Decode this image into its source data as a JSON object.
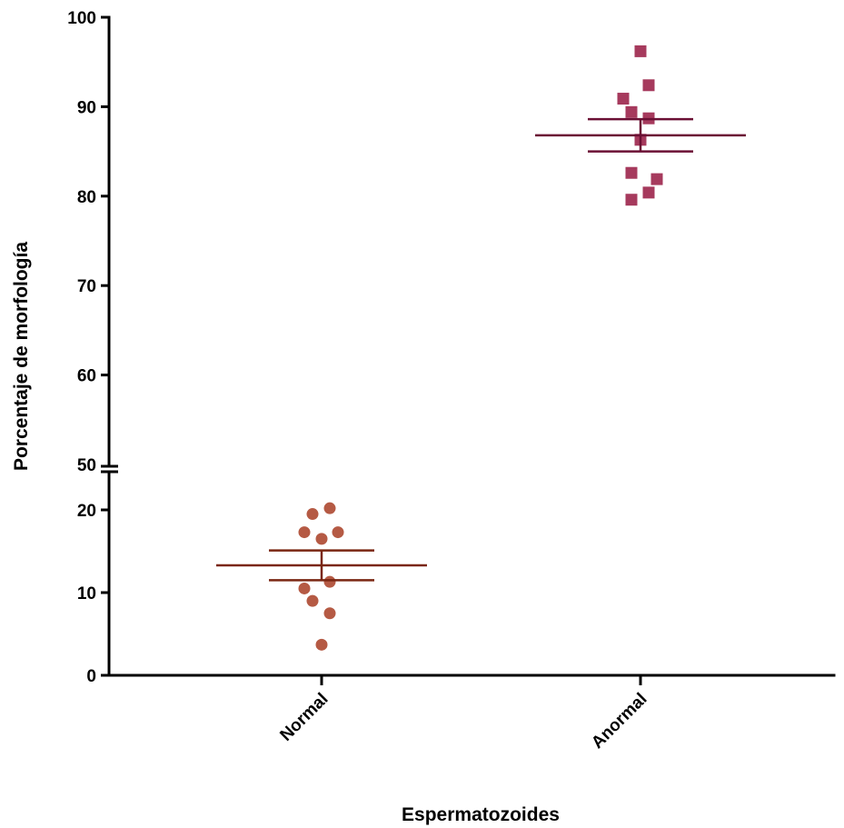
{
  "chart_data": {
    "type": "scatter",
    "title": "",
    "xlabel": "Espermatozoides",
    "ylabel": "Porcentaje de morfología",
    "categories": [
      "Normal",
      "Anormal"
    ],
    "y_axis": {
      "broken": true,
      "lower_segment": {
        "range": [
          0,
          22
        ],
        "ticks": [
          0,
          10,
          20
        ]
      },
      "upper_segment": {
        "range": [
          50,
          100
        ],
        "ticks": [
          50,
          60,
          70,
          80,
          90,
          100
        ]
      }
    },
    "y_tick_labels": [
      "0",
      "10",
      "20",
      "50",
      "60",
      "70",
      "80",
      "90",
      "100"
    ],
    "grid": false,
    "series": [
      {
        "category": "Normal",
        "marker": "circle",
        "color": "#b55a44",
        "values": [
          20.2,
          19.5,
          17.3,
          17.3,
          16.5,
          11.3,
          10.5,
          9.0,
          7.5,
          3.7
        ],
        "mean": 13.3,
        "error_upper": 15.1,
        "error_lower": 11.5,
        "line_color": "#7a2612"
      },
      {
        "category": "Anormal",
        "marker": "square",
        "color": "#a63a5d",
        "values": [
          96.2,
          92.4,
          90.9,
          89.4,
          88.7,
          86.3,
          82.6,
          81.9,
          80.4,
          79.6
        ],
        "mean": 86.8,
        "error_upper": 88.6,
        "error_lower": 85.0,
        "line_color": "#6b1034"
      }
    ]
  }
}
